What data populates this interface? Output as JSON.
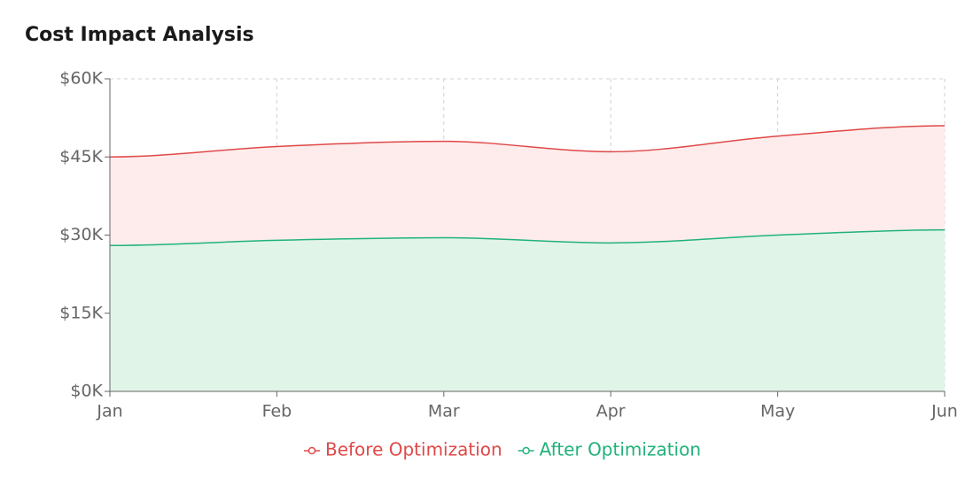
{
  "chart_data": {
    "type": "area",
    "title": "Cost Impact Analysis",
    "categories": [
      "Jan",
      "Feb",
      "Mar",
      "Apr",
      "May",
      "Jun"
    ],
    "series": [
      {
        "name": "Before Optimization",
        "color": "#e04848",
        "fill": "#fdeceb",
        "values": [
          45000,
          47000,
          48000,
          46000,
          49000,
          51000
        ]
      },
      {
        "name": "After Optimization",
        "color": "#20b27a",
        "fill": "#e1f4e8",
        "values": [
          28000,
          29000,
          29500,
          28500,
          30000,
          31000
        ]
      }
    ],
    "ylim": [
      0,
      60000
    ],
    "yticks": [
      {
        "value": 0,
        "label": "$0K"
      },
      {
        "value": 15000,
        "label": "$15K"
      },
      {
        "value": 30000,
        "label": "$30K"
      },
      {
        "value": 45000,
        "label": "$45K"
      },
      {
        "value": 60000,
        "label": "$60K"
      }
    ],
    "grid": true,
    "legend": "bottom"
  }
}
